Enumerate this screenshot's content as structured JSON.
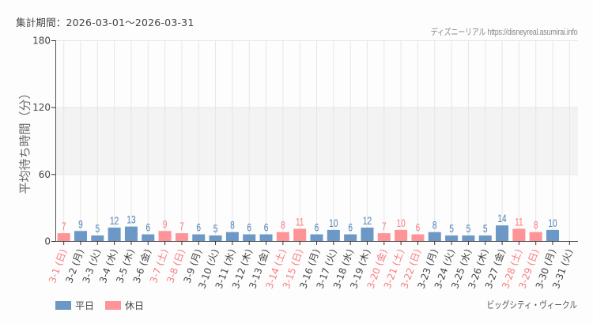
{
  "header": {
    "period_label": "集計期間：2026-03-01～2026-03-31",
    "credit": "ディズニーリアル https://disneyreal.asumirai.info"
  },
  "footer": {
    "attraction_name": "ビッグシティ・ヴィークル"
  },
  "legend": [
    {
      "label": "平日",
      "color": "#6b98c6"
    },
    {
      "label": "休日",
      "color": "#fe9497"
    }
  ],
  "colors": {
    "weekday": "#6b98c6",
    "holiday": "#fe9497",
    "weekday_text": "#4e7fb8",
    "holiday_text": "#fb7a80",
    "band": "#f3f3f3",
    "grid": "#e6e6e6"
  },
  "chart_data": {
    "type": "bar",
    "title": "",
    "xlabel": "",
    "ylabel": "平均待ち時間（分）",
    "ylim": [
      0,
      180
    ],
    "yticks": [
      0,
      60,
      120,
      180
    ],
    "shaded_band": [
      60,
      120
    ],
    "grid": true,
    "legend_position": "bottom-left",
    "categories": [
      "3-1 (日)",
      "3-2 (月)",
      "3-3 (火)",
      "3-4 (水)",
      "3-5 (木)",
      "3-6 (金)",
      "3-7 (土)",
      "3-8 (日)",
      "3-9 (月)",
      "3-10 (火)",
      "3-11 (水)",
      "3-12 (木)",
      "3-13 (金)",
      "3-14 (土)",
      "3-15 (日)",
      "3-16 (月)",
      "3-17 (火)",
      "3-18 (水)",
      "3-19 (木)",
      "3-20 (金)",
      "3-21 (土)",
      "3-22 (日)",
      "3-23 (月)",
      "3-24 (火)",
      "3-25 (水)",
      "3-26 (木)",
      "3-27 (金)",
      "3-28 (土)",
      "3-29 (日)",
      "3-30 (月)",
      "3-31 (火)"
    ],
    "values": [
      7,
      9,
      5,
      12,
      13,
      6,
      9,
      7,
      6,
      5,
      8,
      6,
      6,
      8,
      11,
      6,
      10,
      6,
      12,
      7,
      10,
      6,
      8,
      5,
      5,
      5,
      14,
      11,
      8,
      10,
      null
    ],
    "day_type": [
      "休日",
      "平日",
      "平日",
      "平日",
      "平日",
      "平日",
      "休日",
      "休日",
      "平日",
      "平日",
      "平日",
      "平日",
      "平日",
      "休日",
      "休日",
      "平日",
      "平日",
      "平日",
      "平日",
      "休日",
      "休日",
      "休日",
      "平日",
      "平日",
      "平日",
      "平日",
      "平日",
      "休日",
      "休日",
      "平日",
      "平日"
    ],
    "series": [
      {
        "name": "平日",
        "values": [
          null,
          9,
          5,
          12,
          13,
          6,
          null,
          null,
          6,
          5,
          8,
          6,
          6,
          null,
          null,
          6,
          10,
          6,
          12,
          null,
          null,
          null,
          8,
          5,
          5,
          5,
          14,
          null,
          null,
          10,
          null
        ]
      },
      {
        "name": "休日",
        "values": [
          7,
          null,
          null,
          null,
          null,
          null,
          9,
          7,
          null,
          null,
          null,
          null,
          null,
          8,
          11,
          null,
          null,
          null,
          null,
          7,
          10,
          6,
          null,
          null,
          null,
          null,
          null,
          11,
          8,
          null,
          null
        ]
      }
    ]
  }
}
